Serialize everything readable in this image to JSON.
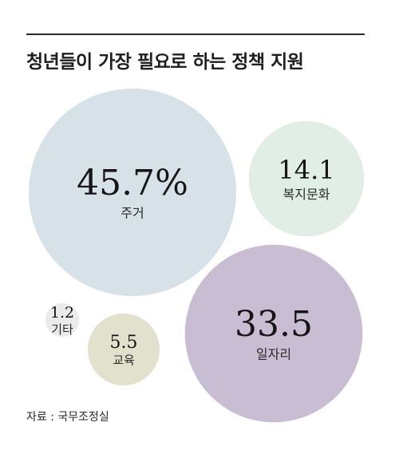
{
  "title": "청년들이 가장 필요로 하는 정책 지원",
  "source": "자료 : 국무조정실",
  "chart_data": {
    "type": "bubble",
    "unit": "%",
    "items": [
      {
        "label": "주거",
        "value": 45.7,
        "display": "45.7%",
        "color": "#d7e1e8"
      },
      {
        "label": "일자리",
        "value": 33.5,
        "display": "33.5",
        "color": "#c9bdd4"
      },
      {
        "label": "복지문화",
        "value": 14.1,
        "display": "14.1",
        "color": "#e1eee5"
      },
      {
        "label": "교육",
        "value": 5.5,
        "display": "5.5",
        "color": "#e2e1cd"
      },
      {
        "label": "기타",
        "value": 1.2,
        "display": "1.2",
        "color": "#ebebeb"
      }
    ]
  }
}
